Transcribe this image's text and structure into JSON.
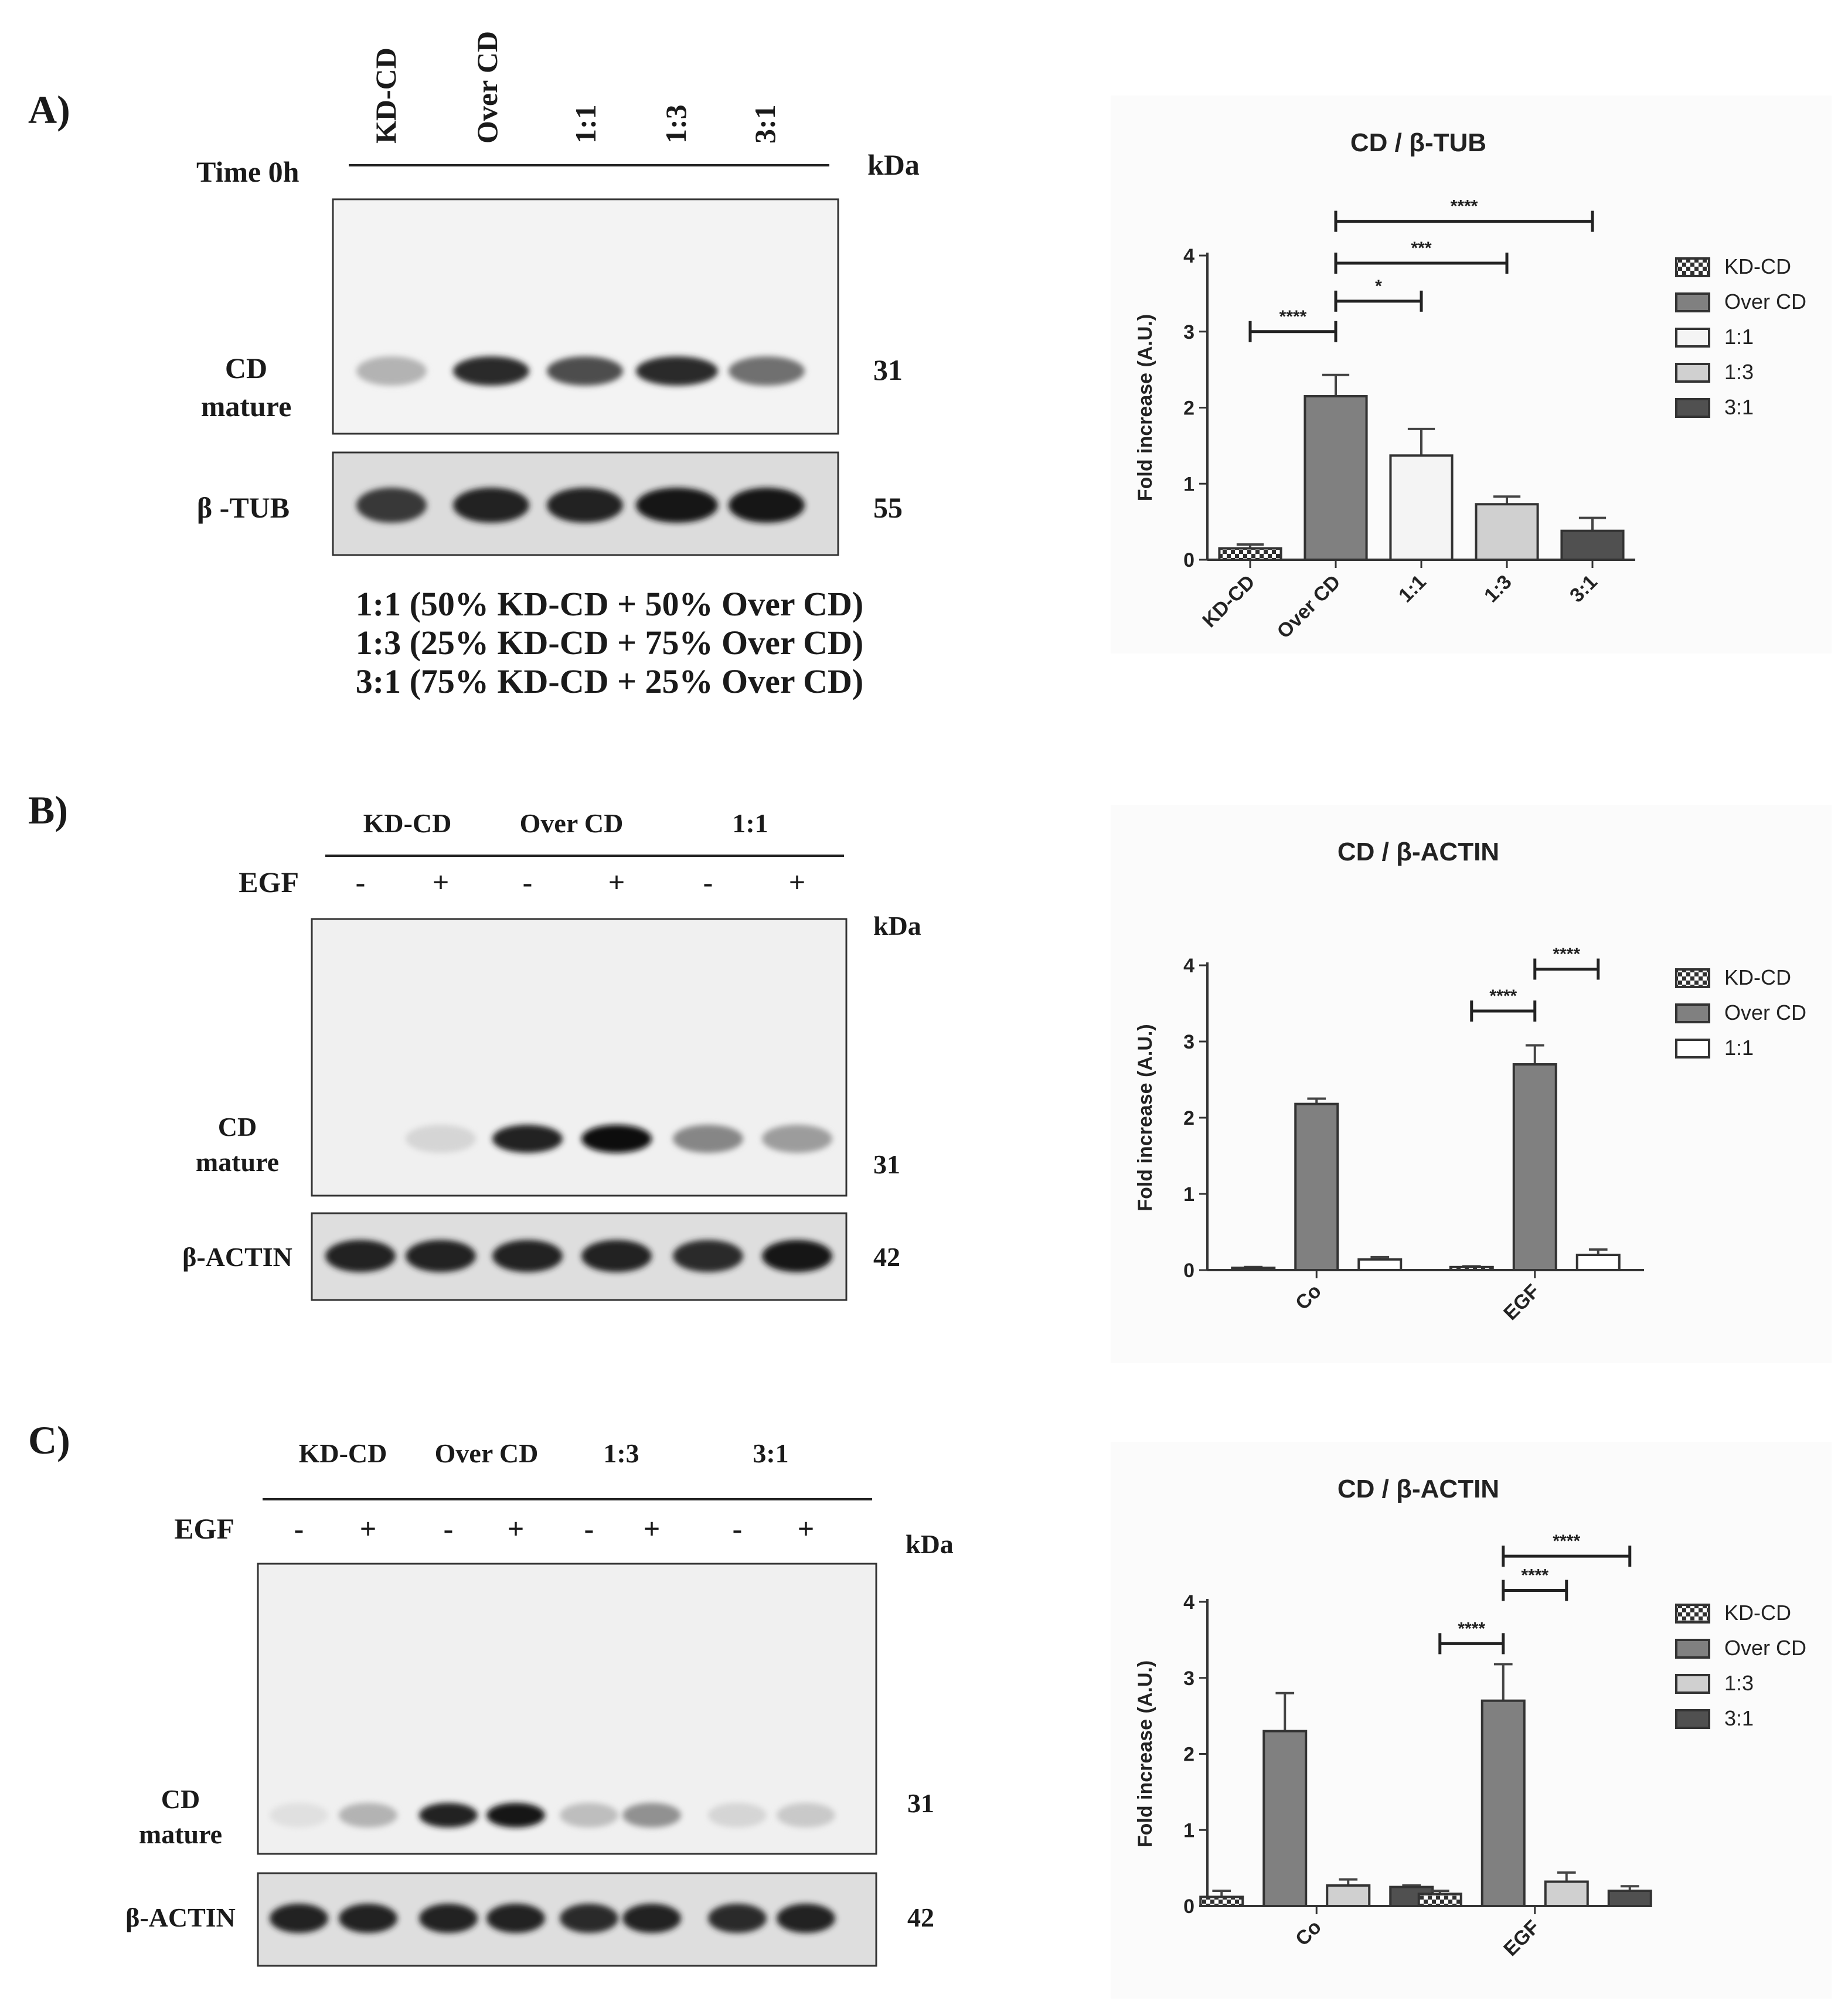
{
  "panels": [
    {
      "id": "A",
      "label": "A)",
      "blot": {
        "condition_label": "Time 0h",
        "lanes": [
          "KD-CD",
          "Over CD",
          "1:1",
          "1:3",
          "3:1"
        ],
        "kda_label": "kDa",
        "rows": [
          {
            "label": "CD\nmature",
            "kda": "31",
            "intensities": [
              0.25,
              0.85,
              0.7,
              0.85,
              0.55
            ]
          },
          {
            "label": "β -TUB",
            "kda": "55",
            "intensities": [
              0.8,
              0.9,
              0.9,
              0.95,
              0.95
            ]
          }
        ],
        "legend_lines": [
          "1:1 (50% KD-CD + 50% Over CD)",
          "1:3 (25% KD-CD + 75% Over CD)",
          "3:1 (75% KD-CD + 25% Over CD)"
        ]
      }
    },
    {
      "id": "B",
      "label": "B)",
      "blot": {
        "condition_label": "EGF",
        "groups": [
          "KD-CD",
          "Over CD",
          "1:1"
        ],
        "signs": [
          "-",
          "+",
          "-",
          "+",
          "-",
          "+"
        ],
        "kda_label": "kDa",
        "rows": [
          {
            "label": "CD\nmature",
            "kda": "31",
            "intensities": [
              0.0,
              0.1,
              0.9,
              1.0,
              0.45,
              0.35
            ]
          },
          {
            "label": "β-ACTIN",
            "kda": "42",
            "intensities": [
              0.9,
              0.9,
              0.9,
              0.9,
              0.85,
              0.95
            ]
          }
        ]
      }
    },
    {
      "id": "C",
      "label": "C)",
      "blot": {
        "condition_label": "EGF",
        "groups": [
          "KD-CD",
          "Over CD",
          "1:3",
          "3:1"
        ],
        "signs": [
          "-",
          "+",
          "-",
          "+",
          "-",
          "+",
          "-",
          "+"
        ],
        "kda_label": "kDa",
        "rows": [
          {
            "label": "CD\nmature",
            "kda": "31",
            "intensities": [
              0.05,
              0.25,
              0.9,
              0.95,
              0.2,
              0.4,
              0.1,
              0.15
            ]
          },
          {
            "label": "β-ACTIN",
            "kda": "42",
            "intensities": [
              0.9,
              0.9,
              0.9,
              0.9,
              0.85,
              0.9,
              0.85,
              0.9
            ]
          }
        ]
      }
    }
  ],
  "chart_data": [
    {
      "type": "bar",
      "title": "CD / β-TUB",
      "ylabel": "Fold increase (A.U.)",
      "ylim": [
        0,
        4
      ],
      "yticks": [
        0,
        1,
        2,
        3,
        4
      ],
      "categories": [
        "KD-CD",
        "Over CD",
        "1:1",
        "1:3",
        "3:1"
      ],
      "values": [
        0.15,
        2.15,
        1.37,
        0.73,
        0.38
      ],
      "errors": [
        0.05,
        0.28,
        0.35,
        0.1,
        0.17
      ],
      "fills": [
        "#ffffff",
        "#808080",
        "#f4f4f4",
        "#d0d0d0",
        "#505050"
      ],
      "hatched": [
        true,
        false,
        false,
        false,
        false
      ],
      "legend": [
        "KD-CD",
        "Over CD",
        "1:1",
        "1:3",
        "3:1"
      ],
      "significance": [
        {
          "from": 0,
          "to": 1,
          "level": 3.0,
          "label": "****"
        },
        {
          "from": 1,
          "to": 2,
          "level": 3.4,
          "label": "*"
        },
        {
          "from": 1,
          "to": 3,
          "level": 3.9,
          "label": "***"
        },
        {
          "from": 1,
          "to": 4,
          "level": 4.45,
          "label": "****"
        }
      ]
    },
    {
      "type": "bar",
      "title": "CD / β-ACTIN",
      "ylabel": "Fold increase (A.U.)",
      "ylim": [
        0,
        4
      ],
      "yticks": [
        0,
        1,
        2,
        3,
        4
      ],
      "categories": [
        "Co",
        "EGF"
      ],
      "series": [
        {
          "name": "KD-CD",
          "values": [
            0.03,
            0.04
          ],
          "errors": [
            0.01,
            0.01
          ],
          "fill": "#ffffff",
          "hatched": true
        },
        {
          "name": "Over CD",
          "values": [
            2.18,
            2.7
          ],
          "errors": [
            0.07,
            0.25
          ],
          "fill": "#808080",
          "hatched": false
        },
        {
          "name": "1:1",
          "values": [
            0.14,
            0.2
          ],
          "errors": [
            0.03,
            0.07
          ],
          "fill": "#ffffff",
          "hatched": false
        }
      ],
      "significance": [
        {
          "category": 1,
          "from": 0,
          "to": 1,
          "level": 3.4,
          "label": "****"
        },
        {
          "category": 1,
          "from": 1,
          "to": 2,
          "level": 3.95,
          "label": "****"
        }
      ]
    },
    {
      "type": "bar",
      "title": "CD / β-ACTIN",
      "ylabel": "Fold increase (A.U.)",
      "ylim": [
        0,
        4
      ],
      "yticks": [
        0,
        1,
        2,
        3,
        4
      ],
      "categories": [
        "Co",
        "EGF"
      ],
      "series": [
        {
          "name": "KD-CD",
          "values": [
            0.12,
            0.16
          ],
          "errors": [
            0.08,
            0.04
          ],
          "fill": "#ffffff",
          "hatched": true
        },
        {
          "name": "Over CD",
          "values": [
            2.3,
            2.7
          ],
          "errors": [
            0.5,
            0.48
          ],
          "fill": "#808080",
          "hatched": false
        },
        {
          "name": "1:3",
          "values": [
            0.27,
            0.32
          ],
          "errors": [
            0.08,
            0.12
          ],
          "fill": "#d0d0d0",
          "hatched": false
        },
        {
          "name": "3:1",
          "values": [
            0.25,
            0.2
          ],
          "errors": [
            0.02,
            0.06
          ],
          "fill": "#505050",
          "hatched": false
        }
      ],
      "significance": [
        {
          "category": 1,
          "from": 0,
          "to": 1,
          "level": 3.45,
          "label": "****"
        },
        {
          "category": 1,
          "from": 1,
          "to": 2,
          "level": 4.15,
          "label": "****"
        },
        {
          "category": 1,
          "from": 1,
          "to": 3,
          "level": 4.6,
          "label": "****"
        }
      ]
    }
  ]
}
